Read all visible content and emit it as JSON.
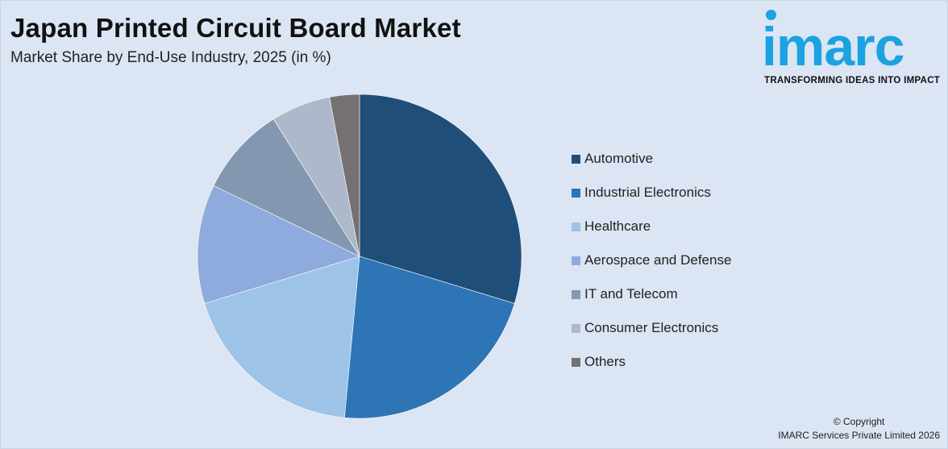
{
  "header": {
    "title": "Japan Printed Circuit Board Market",
    "subtitle": "Market Share by End-Use Industry, 2025 (in %)"
  },
  "logo": {
    "wordmark": "imarc",
    "tagline": "TRANSFORMING IDEAS INTO IMPACT",
    "color": "#1aa3e0"
  },
  "chart_data": {
    "type": "pie",
    "title": "Japan Printed Circuit Board Market",
    "subtitle": "Market Share by End-Use Industry, 2025 (in %)",
    "legend_position": "right",
    "series": [
      {
        "name": "Automotive",
        "value": 30,
        "color": "#1f4e79"
      },
      {
        "name": "Industrial Electronics",
        "value": 22,
        "color": "#2e75b6"
      },
      {
        "name": "Healthcare",
        "value": 19,
        "color": "#9dc3e6"
      },
      {
        "name": "Aerospace and Defense",
        "value": 12,
        "color": "#8faadc"
      },
      {
        "name": "IT and Telecom",
        "value": 9,
        "color": "#8497b0"
      },
      {
        "name": "Consumer Electronics",
        "value": 6,
        "color": "#adb9ca"
      },
      {
        "name": "Others",
        "value": 3,
        "color": "#767171"
      }
    ]
  },
  "footer": {
    "copyright_line1": "© Copyright",
    "copyright_line2": "IMARC Services Private Limited 2026"
  }
}
